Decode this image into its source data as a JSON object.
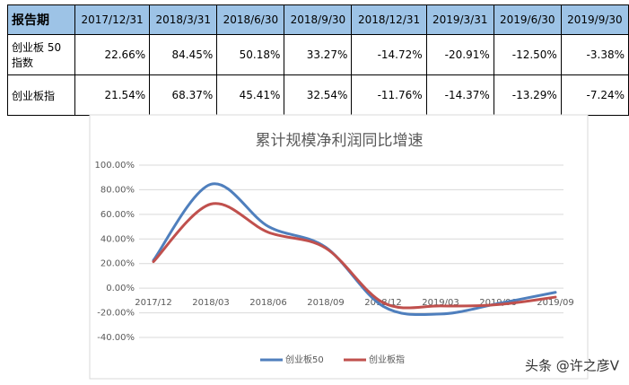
{
  "table": {
    "header": [
      "报告期",
      "2017/12/31",
      "2018/3/31",
      "2018/6/30",
      "2018/9/30",
      "2018/12/31",
      "2019/3/31",
      "2019/6/30",
      "2019/9/30"
    ],
    "rows": [
      [
        "创业板 50 指数",
        "22.66%",
        "84.45%",
        "50.18%",
        "33.27%",
        "-14.72%",
        "-20.91%",
        "-12.50%",
        "-3.38%"
      ],
      [
        "创业板指",
        "21.54%",
        "68.37%",
        "45.41%",
        "32.54%",
        "-11.76%",
        "-14.37%",
        "-13.29%",
        "-7.24%"
      ]
    ]
  },
  "chart_data": {
    "type": "line",
    "title": "累计规模净利润同比增速",
    "categories": [
      "2017/12",
      "2018/03",
      "2018/06",
      "2018/09",
      "2018/12",
      "2019/03",
      "2019/06",
      "2019/09"
    ],
    "series": [
      {
        "name": "创业板50",
        "color": "#4f7fbd",
        "values": [
          22.66,
          84.45,
          50.18,
          33.27,
          -14.72,
          -20.91,
          -12.5,
          -3.38
        ]
      },
      {
        "name": "创业板指",
        "color": "#c0504d",
        "values": [
          21.54,
          68.37,
          45.41,
          32.54,
          -11.76,
          -14.37,
          -13.29,
          -7.24
        ]
      }
    ],
    "ylim": [
      -40,
      100
    ],
    "yticks": [
      {
        "value": -40,
        "label": "-40.00%"
      },
      {
        "value": -20,
        "label": "-20.00%"
      },
      {
        "value": 0,
        "label": "0.00%"
      },
      {
        "value": 20,
        "label": "20.00%"
      },
      {
        "value": 40,
        "label": "40.00%"
      },
      {
        "value": 60,
        "label": "60.00%"
      },
      {
        "value": 80,
        "label": "80.00%"
      },
      {
        "value": 100,
        "label": "100.00%"
      }
    ],
    "grid": true,
    "legend": "bottom"
  },
  "watermark": "头条 @许之彦V"
}
